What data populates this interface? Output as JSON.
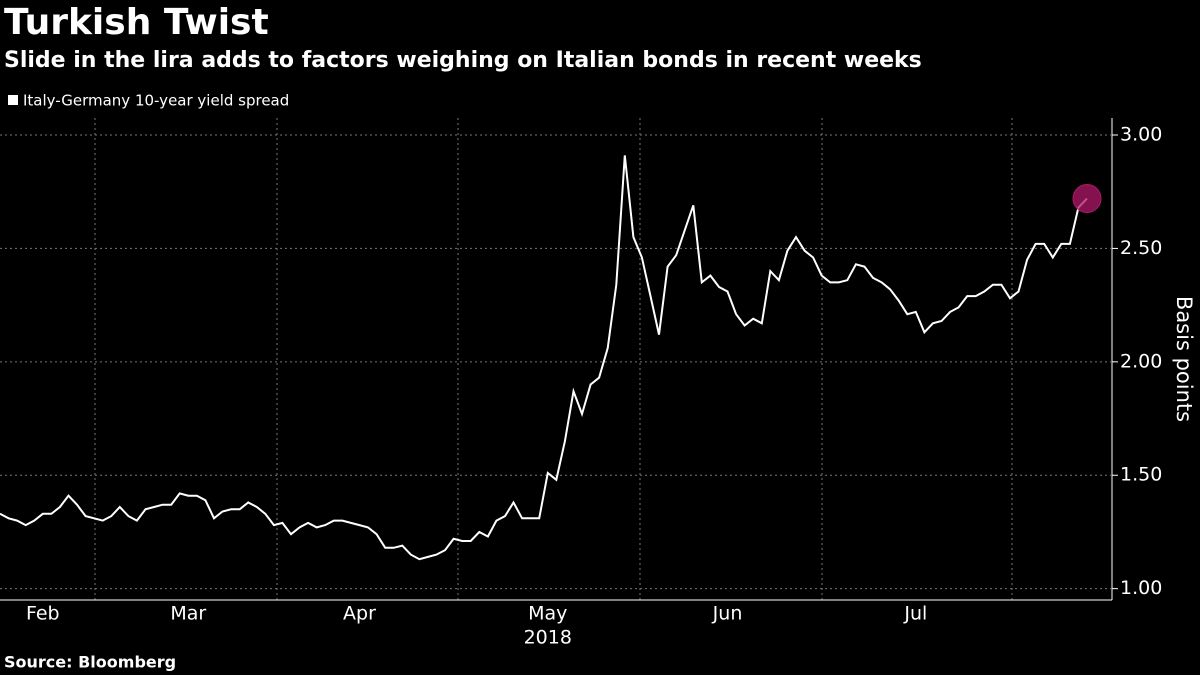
{
  "chart_data": {
    "type": "line",
    "title": "Turkish Twist",
    "subtitle": "Slide in the lira adds to factors weighing on Italian bonds in recent weeks",
    "source": "Source: Bloomberg",
    "y_label": "Basis points",
    "x_sublabel": "2018",
    "categories": [
      null,
      null,
      null,
      null,
      null,
      "Feb",
      null,
      null,
      null,
      null,
      null,
      null,
      null,
      null,
      null,
      null,
      null,
      null,
      null,
      null,
      null,
      null,
      "Mar",
      null,
      null,
      null,
      null,
      null,
      null,
      null,
      null,
      null,
      null,
      null,
      null,
      null,
      null,
      null,
      null,
      null,
      null,
      null,
      "Apr",
      null,
      null,
      null,
      null,
      null,
      null,
      null,
      null,
      null,
      null,
      null,
      null,
      null,
      null,
      null,
      null,
      null,
      null,
      null,
      null,
      null,
      "May",
      null,
      null,
      null,
      null,
      null,
      null,
      null,
      null,
      null,
      null,
      null,
      null,
      null,
      null,
      null,
      null,
      null,
      null,
      null,
      null,
      "Jun",
      null,
      null,
      null,
      null,
      null,
      null,
      null,
      null,
      null,
      null,
      null,
      null,
      null,
      null,
      null,
      null,
      null,
      null,
      null,
      null,
      null,
      "Jul",
      null,
      null,
      null,
      null,
      null,
      null,
      null,
      null,
      null,
      null,
      null,
      null,
      null,
      null,
      null,
      null,
      null,
      null,
      null,
      null
    ],
    "series": [
      {
        "name": "Italy-Germany 10-year yield spread",
        "color": "#ffffff",
        "values": [
          1.33,
          1.31,
          1.3,
          1.28,
          1.3,
          1.33,
          1.33,
          1.36,
          1.41,
          1.37,
          1.32,
          1.31,
          1.3,
          1.32,
          1.36,
          1.32,
          1.3,
          1.35,
          1.36,
          1.37,
          1.37,
          1.42,
          1.41,
          1.41,
          1.39,
          1.31,
          1.34,
          1.35,
          1.35,
          1.38,
          1.36,
          1.33,
          1.28,
          1.29,
          1.24,
          1.27,
          1.29,
          1.27,
          1.28,
          1.3,
          1.3,
          1.29,
          1.28,
          1.27,
          1.24,
          1.18,
          1.18,
          1.19,
          1.15,
          1.13,
          1.14,
          1.15,
          1.17,
          1.22,
          1.21,
          1.21,
          1.25,
          1.23,
          1.3,
          1.32,
          1.38,
          1.31,
          1.31,
          1.31,
          1.51,
          1.48,
          1.65,
          1.87,
          1.77,
          1.9,
          1.93,
          2.06,
          2.34,
          2.91,
          2.55,
          2.46,
          2.29,
          2.12,
          2.42,
          2.47,
          2.58,
          2.69,
          2.35,
          2.38,
          2.33,
          2.31,
          2.21,
          2.16,
          2.19,
          2.17,
          2.4,
          2.36,
          2.49,
          2.55,
          2.49,
          2.46,
          2.38,
          2.35,
          2.35,
          2.36,
          2.43,
          2.42,
          2.37,
          2.35,
          2.32,
          2.27,
          2.21,
          2.22,
          2.13,
          2.17,
          2.18,
          2.22,
          2.24,
          2.29,
          2.29,
          2.31,
          2.34,
          2.34,
          2.28,
          2.31,
          2.45,
          2.52,
          2.52,
          2.46,
          2.52,
          2.52,
          2.68,
          2.72
        ]
      }
    ],
    "highlight_color": "#b0186a",
    "ylim": [
      0.95,
      3.075
    ],
    "yticks": [
      {
        "value": 1,
        "label": "1.00"
      },
      {
        "value": 1.5,
        "label": "1.50"
      },
      {
        "value": 2,
        "label": "2.00"
      },
      {
        "value": 2.5,
        "label": "2.50"
      },
      {
        "value": 3,
        "label": "3.00"
      }
    ],
    "grid": true
  }
}
